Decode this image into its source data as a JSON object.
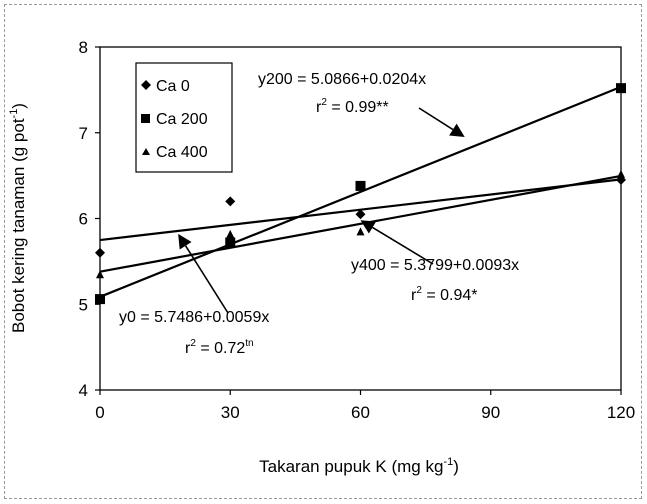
{
  "chart_data": {
    "type": "scatter",
    "xlabel": "Takaran pupuk K (mg kg",
    "xlabel_sup": "-1",
    "xlabel_tail": ")",
    "ylabel": "Bobot kering tanaman (g pot",
    "ylabel_sup": "-1",
    "ylabel_tail": ")",
    "xlim": [
      0,
      120
    ],
    "ylim": [
      4,
      8
    ],
    "xticks": [
      0,
      30,
      60,
      90,
      120
    ],
    "yticks": [
      4,
      5,
      6,
      7,
      8
    ],
    "grid": false,
    "legend_position": "top-left",
    "series": [
      {
        "name": "Ca 0",
        "marker": "diamond",
        "x": [
          0,
          30,
          60,
          120
        ],
        "y": [
          5.6,
          6.2,
          6.05,
          6.45
        ],
        "fit": {
          "intercept": 5.7486,
          "slope": 0.0059
        }
      },
      {
        "name": "Ca 200",
        "marker": "square",
        "x": [
          0,
          30,
          60,
          120
        ],
        "y": [
          5.06,
          5.72,
          6.38,
          7.52
        ],
        "fit": {
          "intercept": 5.0866,
          "slope": 0.0204
        }
      },
      {
        "name": "Ca 400",
        "marker": "triangle",
        "x": [
          0,
          30,
          60,
          120
        ],
        "y": [
          5.35,
          5.82,
          5.85,
          6.52
        ],
        "fit": {
          "intercept": 5.3799,
          "slope": 0.0093
        }
      }
    ],
    "annotations": [
      {
        "equation": "y200 = 5.0866+0.0204x",
        "r2_prefix": "r",
        "r2_sup": "2",
        "r2_value": " = 0.99**",
        "r2_sup2": "",
        "arrow_to": [
          84,
          6.95
        ]
      },
      {
        "equation": "y400 = 5.3799+0.0093x",
        "r2_prefix": "r",
        "r2_sup": "2",
        "r2_value": " = 0.94*",
        "r2_sup2": "",
        "arrow_to": [
          60,
          5.98
        ]
      },
      {
        "equation": "y0 = 5.7486+0.0059x",
        "r2_prefix": "r",
        "r2_sup": "2",
        "r2_value": " = 0.72",
        "r2_sup2": "tn",
        "arrow_to": [
          18,
          5.82
        ]
      }
    ]
  }
}
